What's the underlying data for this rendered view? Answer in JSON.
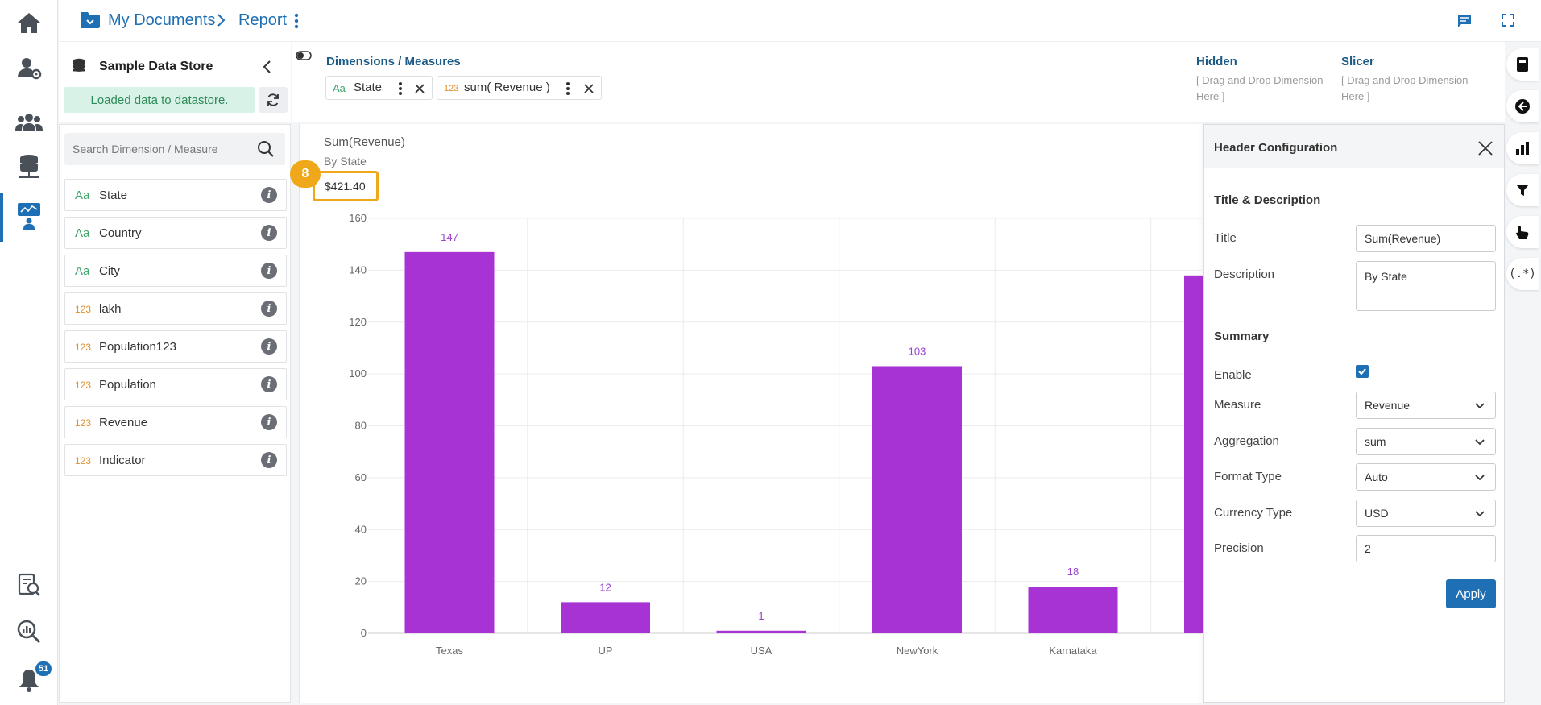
{
  "notifications": {
    "count": "51"
  },
  "breadcrumb": {
    "root": "My Documents",
    "current": "Report"
  },
  "datastore": {
    "name": "Sample Data Store",
    "status": "Loaded data to datastore."
  },
  "search": {
    "placeholder": "Search Dimension / Measure"
  },
  "fields": [
    {
      "type": "Aa",
      "name": "State"
    },
    {
      "type": "Aa",
      "name": "Country"
    },
    {
      "type": "Aa",
      "name": "City"
    },
    {
      "type": "123",
      "name": "lakh"
    },
    {
      "type": "123",
      "name": "Population123"
    },
    {
      "type": "123",
      "name": "Population"
    },
    {
      "type": "123",
      "name": "Revenue"
    },
    {
      "type": "123",
      "name": "Indicator"
    }
  ],
  "dims": {
    "label": "Dimensions / Measures",
    "chips": [
      {
        "type": "Aa",
        "label": "State"
      },
      {
        "type": "123",
        "label": "sum( Revenue )"
      }
    ]
  },
  "hidden": {
    "title": "Hidden",
    "hint": "[ Drag and Drop Dimension Here ]"
  },
  "slicer": {
    "title": "Slicer",
    "hint": "[ Drag and Drop Dimension Here ]"
  },
  "chart": {
    "title": "Sum(Revenue)",
    "subtitle": "By State",
    "summary": "$421.40",
    "step": "8"
  },
  "chart_data": {
    "type": "bar",
    "categories": [
      "Texas",
      "UP",
      "USA",
      "NewYork",
      "Karnataka",
      ""
    ],
    "values": [
      147,
      12,
      1,
      103,
      18,
      138
    ],
    "ylim": [
      0,
      160
    ],
    "yticks": [
      0,
      20,
      40,
      60,
      80,
      100,
      120,
      140,
      160
    ],
    "bar_color": "#a833d4",
    "grid": true
  },
  "config": {
    "title": "Header Configuration",
    "section_title_desc": "Title & Description",
    "title_label": "Title",
    "title_value": "Sum(Revenue)",
    "desc_label": "Description",
    "desc_value": "By State",
    "section_summary": "Summary",
    "enable_label": "Enable",
    "measure_label": "Measure",
    "measure_value": "Revenue",
    "aggregation_label": "Aggregation",
    "aggregation_value": "sum",
    "format_label": "Format Type",
    "format_value": "Auto",
    "currency_label": "Currency Type",
    "currency_value": "USD",
    "precision_label": "Precision",
    "precision_value": "2",
    "apply_label": "Apply"
  },
  "right_rail": {
    "regex_label": "(.*)"
  },
  "colors": {
    "accent": "#1f6fb5",
    "highlight": "#f0a81b",
    "bar": "#a833d4"
  }
}
